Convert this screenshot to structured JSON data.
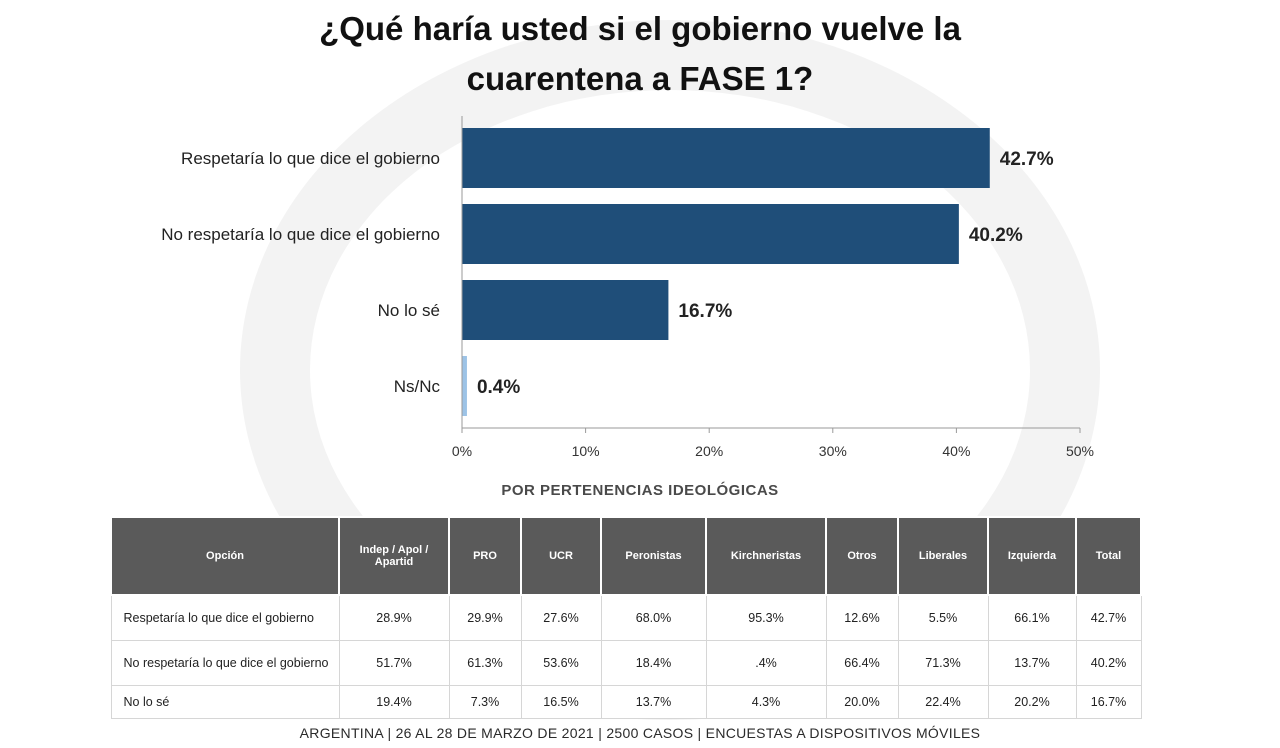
{
  "title_line1": "¿Qué haría usted si el gobierno vuelve la",
  "title_line2": "cuarentena a FASE 1?",
  "chart_data": {
    "type": "bar",
    "orientation": "horizontal",
    "categories": [
      "Respetaría lo que dice el gobierno",
      "No respetaría lo que dice el gobierno",
      "No lo sé",
      "Ns/Nc"
    ],
    "values": [
      42.7,
      40.2,
      16.7,
      0.4
    ],
    "value_labels": [
      "42.7%",
      "40.2%",
      "16.7%",
      "0.4%"
    ],
    "xlim": [
      0,
      50
    ],
    "ticks": [
      0,
      10,
      20,
      30,
      40,
      50
    ],
    "tick_labels": [
      "0%",
      "10%",
      "20%",
      "30%",
      "40%",
      "50%"
    ],
    "colors": [
      "#1f4e79",
      "#1f4e79",
      "#1f4e79",
      "#9dc3e6"
    ],
    "grid": false
  },
  "breakdown": {
    "subtitle": "POR PERTENENCIAS IDEOLÓGICAS",
    "headers": [
      "Opción",
      "Indep / Apol / Apartid",
      "PRO",
      "UCR",
      "Peronistas",
      "Kirchneristas",
      "Otros",
      "Liberales",
      "Izquierda",
      "Total"
    ],
    "rows": [
      [
        "Respetaría lo que dice el gobierno",
        "28.9%",
        "29.9%",
        "27.6%",
        "68.0%",
        "95.3%",
        "12.6%",
        "5.5%",
        "66.1%",
        "42.7%"
      ],
      [
        "No respetaría lo que dice el gobierno",
        "51.7%",
        "61.3%",
        "53.6%",
        "18.4%",
        ".4%",
        "66.4%",
        "71.3%",
        "13.7%",
        "40.2%"
      ],
      [
        "No lo sé",
        "19.4%",
        "7.3%",
        "16.5%",
        "13.7%",
        "4.3%",
        "20.0%",
        "22.4%",
        "20.2%",
        "16.7%"
      ]
    ]
  },
  "footer": "ARGENTINA | 26 AL 28 DE MARZO DE 2021 | 2500 CASOS | ENCUESTAS A DISPOSITIVOS MÓVILES"
}
